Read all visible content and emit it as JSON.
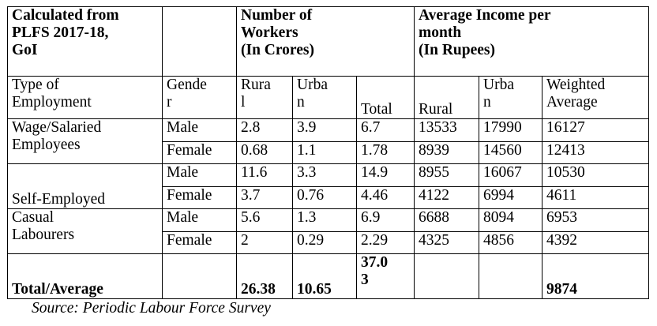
{
  "header": {
    "source_note": "Calculated from\nPLFS 2017-18,\nGoI",
    "workers": "Number of\nWorkers\n(In Crores)",
    "income": "Average Income per\nmonth\n(In Rupees)"
  },
  "columns": {
    "type": "Type of\nEmployment",
    "gender": "Gende\nr",
    "rural_workers": "Rura\nl",
    "urban_workers": "Urba\nn",
    "total_workers": "Total",
    "rural_income": "Rural",
    "urban_income": "Urba\nn",
    "weighted": "Weighted\nAverage"
  },
  "groups": [
    {
      "label": "Wage/Salaried\nEmployees"
    },
    {
      "label": "Self-Employed"
    },
    {
      "label": "Casual\nLabourers"
    }
  ],
  "rows": [
    {
      "gender": "Male",
      "rural_w": "2.8",
      "urban_w": "3.9",
      "total_w": "6.7",
      "rural_i": "13533",
      "urban_i": "17990",
      "weighted": "16127"
    },
    {
      "gender": "Female",
      "rural_w": "0.68",
      "urban_w": "1.1",
      "total_w": "1.78",
      "rural_i": "8939",
      "urban_i": "14560",
      "weighted": "12413"
    },
    {
      "gender": "Male",
      "rural_w": "11.6",
      "urban_w": "3.3",
      "total_w": "14.9",
      "rural_i": "8955",
      "urban_i": "16067",
      "weighted": "10530"
    },
    {
      "gender": "Female",
      "rural_w": "3.7",
      "urban_w": "0.76",
      "total_w": "4.46",
      "rural_i": "4122",
      "urban_i": "6994",
      "weighted": "4611"
    },
    {
      "gender": "Male",
      "rural_w": "5.6",
      "urban_w": "1.3",
      "total_w": "6.9",
      "rural_i": "6688",
      "urban_i": "8094",
      "weighted": "6953"
    },
    {
      "gender": "Female",
      "rural_w": "2",
      "urban_w": "0.29",
      "total_w": "2.29",
      "rural_i": "4325",
      "urban_i": "4856",
      "weighted": "4392"
    }
  ],
  "total": {
    "label": "Total/Average",
    "rural_w": "26.38",
    "urban_w": "10.65",
    "total_w": "37.0\n3",
    "weighted": "9874"
  },
  "source": "Source: Periodic Labour Force Survey"
}
